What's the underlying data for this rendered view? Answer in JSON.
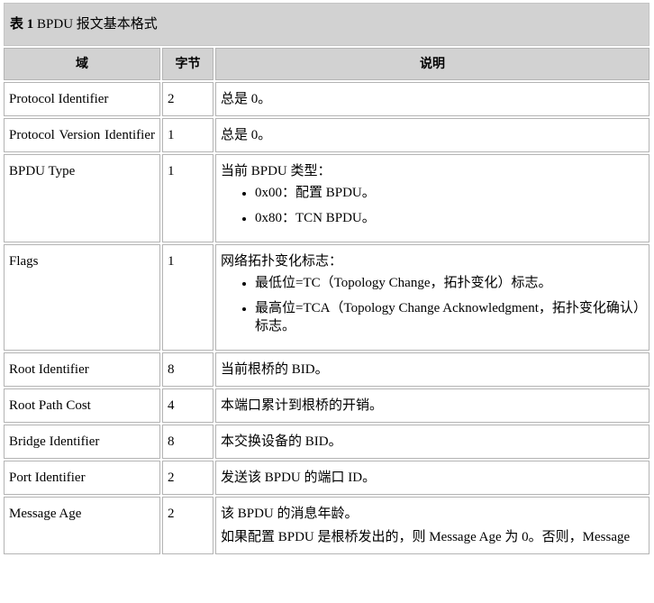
{
  "caption": {
    "label": "表 1",
    "title": "BPDU 报文基本格式"
  },
  "headers": [
    "域",
    "字节",
    "说明"
  ],
  "rows": [
    {
      "field": "Protocol Identifier",
      "bytes": "2",
      "desc": "总是 0。"
    },
    {
      "field": "Protocol Version Identifier",
      "bytes": "1",
      "desc": "总是 0。"
    },
    {
      "field": "BPDU Type",
      "bytes": "1",
      "desc": "当前 BPDU 类型：",
      "bullets": [
        "0x00：配置 BPDU。",
        "0x80：TCN BPDU。"
      ]
    },
    {
      "field": "Flags",
      "bytes": "1",
      "desc": "网络拓扑变化标志：",
      "bullets": [
        "最低位=TC（Topology Change，拓扑变化）标志。",
        "最高位=TCA（Topology Change Acknowledgment，拓扑变化确认）标志。"
      ]
    },
    {
      "field": "Root Identifier",
      "bytes": "8",
      "desc": "当前根桥的 BID。"
    },
    {
      "field": "Root Path Cost",
      "bytes": "4",
      "desc": "本端口累计到根桥的开销。"
    },
    {
      "field": "Bridge Identifier",
      "bytes": "8",
      "desc": "本交换设备的 BID。"
    },
    {
      "field": "Port Identifier",
      "bytes": "2",
      "desc": "发送该 BPDU 的端口 ID。"
    },
    {
      "field": "Message Age",
      "bytes": "2",
      "desc": "该 BPDU 的消息年龄。",
      "desc2": "如果配置 BPDU 是根桥发出的，则 Message Age 为 0。否则，Message"
    }
  ]
}
